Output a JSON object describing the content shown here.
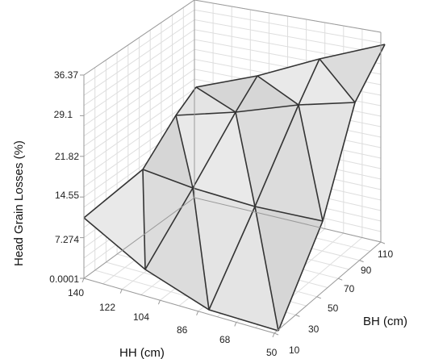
{
  "chart_data": {
    "type": "surface3d",
    "title": "",
    "zlabel": "Head Grain Losses (%)",
    "xlabel": "HH (cm)",
    "ylabel": "BH (cm)",
    "x_ticks": [
      "140",
      "122",
      "104",
      "86",
      "68",
      "50"
    ],
    "y_ticks": [
      "10",
      "30",
      "50",
      "70",
      "90",
      "110"
    ],
    "z_ticks": [
      "0.0001",
      "7.274",
      "14.55",
      "21.82",
      "29.1",
      "36.37"
    ],
    "zlim": [
      0.0001,
      36.37
    ],
    "grid": true,
    "surface_color": "#e3e3e3",
    "edge_color": "#333333"
  }
}
